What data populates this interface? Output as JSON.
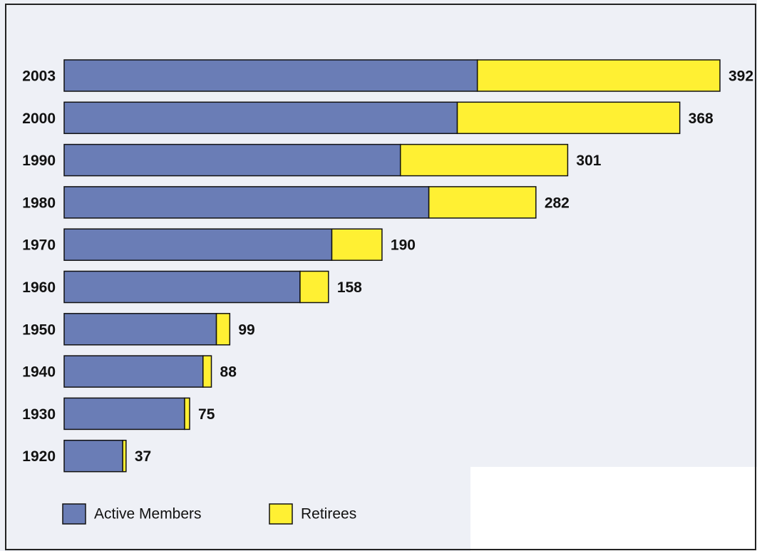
{
  "chart_data": {
    "type": "stacked-bar-horizontal",
    "categories": [
      "2003",
      "2000",
      "1990",
      "1980",
      "1970",
      "1960",
      "1950",
      "1940",
      "1930",
      "1920"
    ],
    "series": [
      {
        "name": "Active Members",
        "color": "#6a7db6",
        "values": [
          247,
          235,
          201,
          218,
          160,
          141,
          91,
          83,
          72,
          35
        ]
      },
      {
        "name": "Retirees",
        "color": "#fff033",
        "values": [
          145,
          133,
          100,
          64,
          30,
          17,
          8,
          5,
          3,
          2
        ]
      }
    ],
    "totals": [
      392,
      368,
      301,
      282,
      190,
      158,
      99,
      88,
      75,
      37
    ]
  }
}
